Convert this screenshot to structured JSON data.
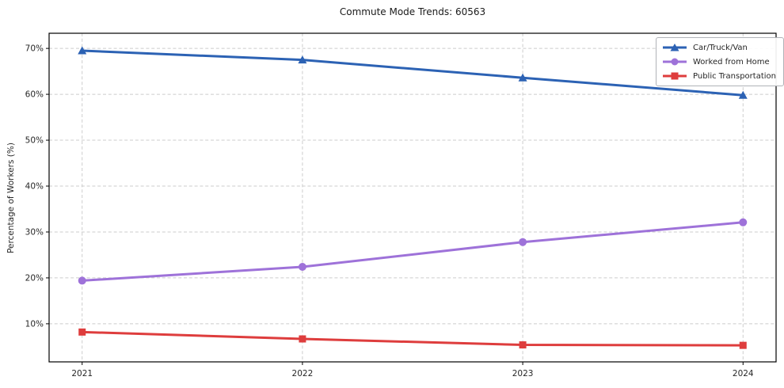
{
  "chart_data": {
    "type": "line",
    "title": "Commute Mode Trends: 60563",
    "xlabel": "",
    "ylabel": "Percentage of Workers (%)",
    "categories": [
      "2021",
      "2022",
      "2023",
      "2024"
    ],
    "series": [
      {
        "name": "Car/Truck/Van",
        "color": "#2c62b4",
        "marker": "triangle",
        "values": [
          69.5,
          67.5,
          63.6,
          59.8
        ]
      },
      {
        "name": "Worked from Home",
        "color": "#9e72d9",
        "marker": "circle",
        "values": [
          19.4,
          22.4,
          27.8,
          32.1
        ]
      },
      {
        "name": "Public Transportation",
        "color": "#de3d3d",
        "marker": "square",
        "values": [
          8.2,
          6.7,
          5.4,
          5.3
        ]
      }
    ],
    "yticks": [
      10,
      20,
      30,
      40,
      50,
      60,
      70
    ],
    "ytick_labels": [
      "10%",
      "20%",
      "30%",
      "40%",
      "50%",
      "60%",
      "70%"
    ],
    "ylim": [
      1.7,
      73.3
    ],
    "xlim": [
      2020.85,
      2024.15
    ],
    "grid": true,
    "grid_style": "dashed",
    "legend_position": "upper right",
    "colors": {
      "grid": "#cccccc",
      "axis": "#000000",
      "text": "#262626",
      "background": "#ffffff"
    }
  }
}
